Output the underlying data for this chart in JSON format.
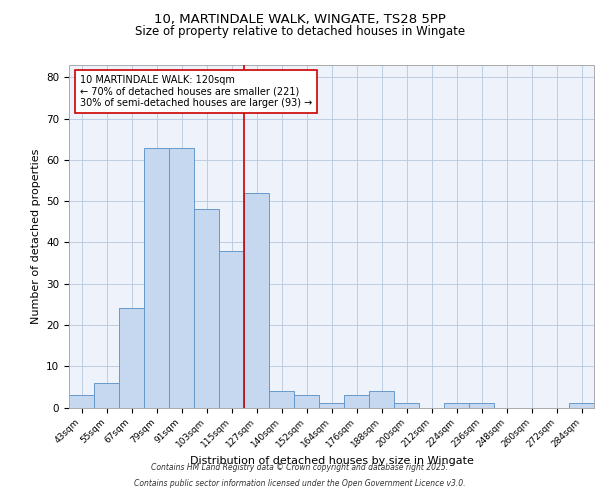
{
  "title1": "10, MARTINDALE WALK, WINGATE, TS28 5PP",
  "title2": "Size of property relative to detached houses in Wingate",
  "xlabel": "Distribution of detached houses by size in Wingate",
  "ylabel": "Number of detached properties",
  "bin_labels": [
    "43sqm",
    "55sqm",
    "67sqm",
    "79sqm",
    "91sqm",
    "103sqm",
    "115sqm",
    "127sqm",
    "140sqm",
    "152sqm",
    "164sqm",
    "176sqm",
    "188sqm",
    "200sqm",
    "212sqm",
    "224sqm",
    "236sqm",
    "248sqm",
    "260sqm",
    "272sqm",
    "284sqm"
  ],
  "bar_values": [
    3,
    6,
    24,
    63,
    63,
    48,
    38,
    52,
    4,
    3,
    1,
    3,
    4,
    1,
    0,
    1,
    1,
    0,
    0,
    0,
    1
  ],
  "bar_color": "#c5d8f0",
  "bar_edge_color": "#6699cc",
  "vline_x_index": 6.5,
  "vline_color": "#cc0000",
  "annotation_line1": "10 MARTINDALE WALK: 120sqm",
  "annotation_line2": "← 70% of detached houses are smaller (221)",
  "annotation_line3": "30% of semi-detached houses are larger (93) →",
  "annotation_box_edge": "#cc0000",
  "ylim": [
    0,
    83
  ],
  "yticks": [
    0,
    10,
    20,
    30,
    40,
    50,
    60,
    70,
    80
  ],
  "footer_line1": "Contains HM Land Registry data © Crown copyright and database right 2025.",
  "footer_line2": "Contains public sector information licensed under the Open Government Licence v3.0.",
  "plot_bg_color": "#eef2fa"
}
